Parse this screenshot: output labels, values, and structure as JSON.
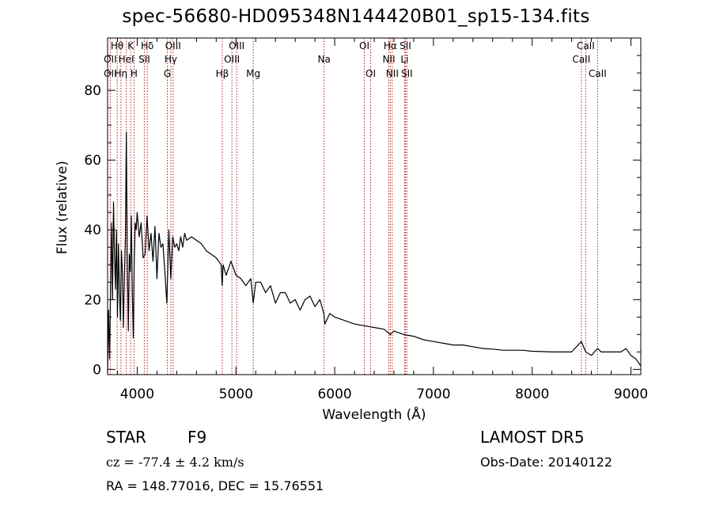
{
  "title": "spec-56680-HD095348N144420B01_sp15-134.fits",
  "info": {
    "object_class": "STAR",
    "subclass": "F9",
    "survey": "LAMOST DR5",
    "cz": "cz = -77.4 ± 4.2 km/s",
    "obs_date": "Obs-Date: 20140122",
    "coords": "RA = 148.77016, DEC =  15.76551"
  },
  "chart_data": {
    "type": "line",
    "title": "spec-56680-HD095348N144420B01_sp15-134.fits",
    "xlabel": "Wavelength (Å)",
    "ylabel": "Flux (relative)",
    "xlim": [
      3700,
      9100
    ],
    "ylim": [
      -1.5,
      95
    ],
    "xticks": [
      4000,
      5000,
      6000,
      7000,
      8000,
      9000
    ],
    "xtick_labels": [
      "4000",
      "5000",
      "6000",
      "7000",
      "8000",
      "9000"
    ],
    "yticks": [
      0,
      20,
      40,
      60,
      80
    ],
    "ytick_labels": [
      "0",
      "20",
      "40",
      "60",
      "80"
    ],
    "grid": false,
    "line_color": "#000000",
    "marker_color": "#b22222",
    "spectrum": {
      "name": "flux",
      "x": [
        3700,
        3710,
        3720,
        3730,
        3740,
        3750,
        3760,
        3770,
        3780,
        3790,
        3800,
        3810,
        3820,
        3830,
        3840,
        3850,
        3860,
        3870,
        3880,
        3890,
        3900,
        3910,
        3920,
        3930,
        3940,
        3950,
        3960,
        3970,
        3980,
        3990,
        4000,
        4020,
        4040,
        4060,
        4080,
        4100,
        4120,
        4140,
        4160,
        4180,
        4200,
        4220,
        4240,
        4260,
        4280,
        4300,
        4320,
        4340,
        4360,
        4380,
        4400,
        4420,
        4440,
        4460,
        4480,
        4500,
        4550,
        4600,
        4650,
        4700,
        4750,
        4800,
        4850,
        4861,
        4870,
        4900,
        4950,
        5000,
        5050,
        5100,
        5150,
        5175,
        5200,
        5250,
        5300,
        5350,
        5400,
        5450,
        5500,
        5550,
        5600,
        5650,
        5700,
        5750,
        5800,
        5850,
        5890,
        5900,
        5950,
        6000,
        6100,
        6200,
        6300,
        6400,
        6500,
        6563,
        6600,
        6700,
        6800,
        6900,
        7000,
        7100,
        7200,
        7300,
        7400,
        7500,
        7600,
        7700,
        7800,
        7900,
        8000,
        8100,
        8200,
        8300,
        8400,
        8498,
        8542,
        8600,
        8662,
        8700,
        8750,
        8800,
        8850,
        8900,
        8950,
        9000,
        9050,
        9100
      ],
      "y": [
        -1,
        17,
        3,
        22,
        42,
        20,
        48,
        33,
        23,
        40,
        15,
        36,
        22,
        14,
        34,
        28,
        12,
        26,
        38,
        68,
        30,
        11,
        33,
        28,
        44,
        23,
        9,
        31,
        42,
        40,
        45,
        38,
        42,
        32,
        33,
        44,
        34,
        39,
        31,
        41,
        26,
        39,
        35,
        36,
        28,
        19,
        40,
        26,
        38,
        35,
        36,
        34,
        38,
        35,
        39,
        37,
        38,
        37,
        36,
        34,
        33,
        32,
        30,
        24,
        30,
        27,
        31,
        27,
        26,
        24,
        26,
        19,
        25,
        25,
        22,
        24,
        19,
        22,
        22,
        19,
        20,
        17,
        20,
        21,
        18,
        20,
        16,
        13,
        16,
        15,
        14,
        13,
        12.5,
        12,
        11.5,
        10,
        11,
        10,
        9.5,
        8.5,
        8,
        7.5,
        7,
        7,
        6.5,
        6,
        5.8,
        5.5,
        5.5,
        5.5,
        5.2,
        5.1,
        5,
        5,
        5,
        8,
        5,
        4,
        6,
        5,
        5,
        5,
        5,
        5,
        6,
        4,
        3,
        1
      ]
    },
    "line_markers": [
      {
        "name": "Hθ",
        "x": 3797,
        "row": 0
      },
      {
        "name": "OII",
        "x": 3727,
        "row": 1
      },
      {
        "name": "OII",
        "x": 3727,
        "row": 2
      },
      {
        "name": "Hη",
        "x": 3835,
        "row": 2
      },
      {
        "name": "K",
        "x": 3934,
        "row": 0
      },
      {
        "name": "HeI",
        "x": 3889,
        "row": 1
      },
      {
        "name": "H",
        "x": 3968,
        "row": 2
      },
      {
        "name": "Hδ",
        "x": 4102,
        "row": 0
      },
      {
        "name": "SII",
        "x": 4072,
        "row": 1
      },
      {
        "name": "OIII",
        "x": 4363,
        "row": 0
      },
      {
        "name": "Hγ",
        "x": 4340,
        "row": 1
      },
      {
        "name": "G",
        "x": 4305,
        "row": 2
      },
      {
        "name": "OIII",
        "x": 5007,
        "row": 0
      },
      {
        "name": "OIII",
        "x": 4959,
        "row": 1
      },
      {
        "name": "Hβ",
        "x": 4861,
        "row": 2
      },
      {
        "name": "Mg",
        "x": 5175,
        "row": 2
      },
      {
        "name": "Na",
        "x": 5893,
        "row": 1
      },
      {
        "name": "OI",
        "x": 6300,
        "row": 0
      },
      {
        "name": "OI",
        "x": 6364,
        "row": 2
      },
      {
        "name": "Hα",
        "x": 6563,
        "row": 0
      },
      {
        "name": "SII",
        "x": 6716,
        "row": 0
      },
      {
        "name": "NII",
        "x": 6548,
        "row": 1
      },
      {
        "name": "Li",
        "x": 6708,
        "row": 1
      },
      {
        "name": "NII",
        "x": 6583,
        "row": 2
      },
      {
        "name": "SII",
        "x": 6731,
        "row": 2
      },
      {
        "name": "CaII",
        "x": 8542,
        "row": 0
      },
      {
        "name": "CaII",
        "x": 8498,
        "row": 1
      },
      {
        "name": "CaII",
        "x": 8662,
        "row": 2
      }
    ]
  }
}
